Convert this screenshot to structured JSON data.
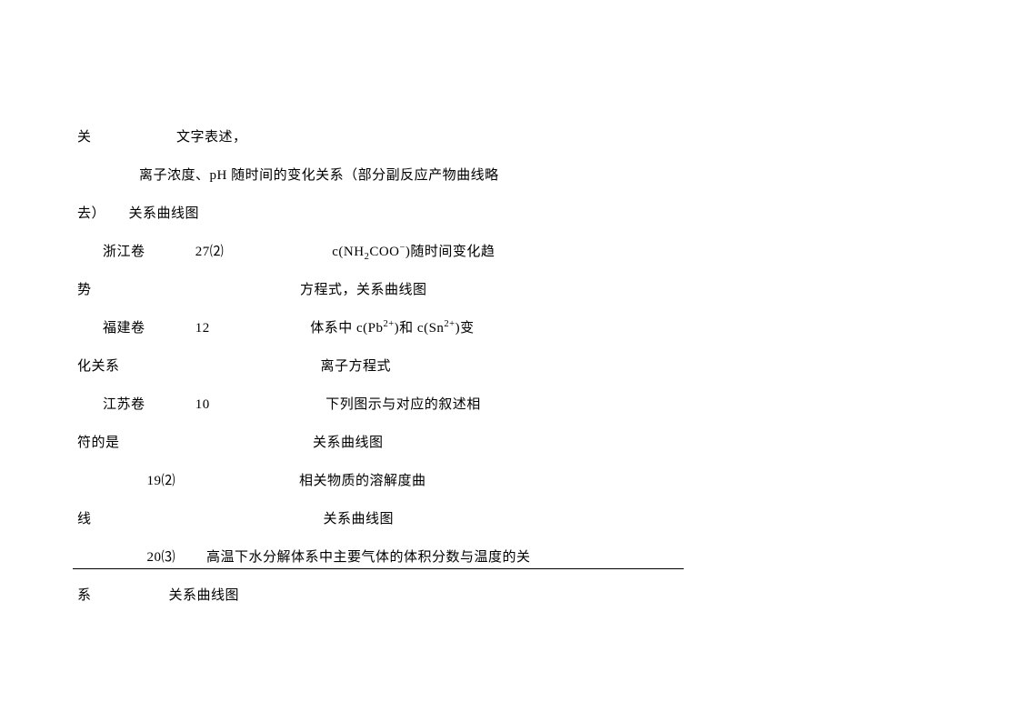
{
  "lines": [
    {
      "cls": "indent1",
      "html": "关&nbsp;&nbsp;&nbsp;&nbsp;&nbsp;&nbsp;&nbsp;&nbsp;&nbsp;&nbsp;&nbsp;&nbsp;&nbsp;&nbsp;&nbsp;&nbsp;&nbsp;&nbsp;&nbsp;&nbsp;&nbsp;&nbsp;文字表述，"
    },
    {
      "cls": "indent1",
      "html": "&nbsp;&nbsp;&nbsp;&nbsp;&nbsp;&nbsp;&nbsp;&nbsp;&nbsp;&nbsp;&nbsp;&nbsp;&nbsp;&nbsp;&nbsp;&nbsp;离子浓度、pH 随时间的变化关系（部分副反应产物曲线略"
    },
    {
      "cls": "indent1",
      "html": "去）&nbsp;&nbsp;&nbsp;&nbsp;&nbsp;&nbsp;关系曲线图"
    },
    {
      "cls": "indent2",
      "html": "浙江卷&nbsp;&nbsp;&nbsp;&nbsp;&nbsp;&nbsp;&nbsp;&nbsp;&nbsp;&nbsp;&nbsp;&nbsp;&nbsp;27⑵&nbsp;&nbsp;&nbsp;&nbsp;&nbsp;&nbsp;&nbsp;&nbsp;&nbsp;&nbsp;&nbsp;&nbsp;&nbsp;&nbsp;&nbsp;&nbsp;&nbsp;&nbsp;&nbsp;&nbsp;&nbsp;&nbsp;&nbsp;&nbsp;&nbsp;&nbsp;&nbsp;&nbsp;c(NH<sub>2</sub>COO<sup>−</sup>)随时间变化趋"
    },
    {
      "cls": "indent1",
      "html": "势&nbsp;&nbsp;&nbsp;&nbsp;&nbsp;&nbsp;&nbsp;&nbsp;&nbsp;&nbsp;&nbsp;&nbsp;&nbsp;&nbsp;&nbsp;&nbsp;&nbsp;&nbsp;&nbsp;&nbsp;&nbsp;&nbsp;&nbsp;&nbsp;&nbsp;&nbsp;&nbsp;&nbsp;&nbsp;&nbsp;&nbsp;&nbsp;&nbsp;&nbsp;&nbsp;&nbsp;&nbsp;&nbsp;&nbsp;&nbsp;&nbsp;&nbsp;&nbsp;&nbsp;&nbsp;&nbsp;&nbsp;&nbsp;&nbsp;&nbsp;&nbsp;&nbsp;&nbsp;&nbsp;方程式，关系曲线图"
    },
    {
      "cls": "indent2",
      "html": "福建卷&nbsp;&nbsp;&nbsp;&nbsp;&nbsp;&nbsp;&nbsp;&nbsp;&nbsp;&nbsp;&nbsp;&nbsp;&nbsp;12&nbsp;&nbsp;&nbsp;&nbsp;&nbsp;&nbsp;&nbsp;&nbsp;&nbsp;&nbsp;&nbsp;&nbsp;&nbsp;&nbsp;&nbsp;&nbsp;&nbsp;&nbsp;&nbsp;&nbsp;&nbsp;&nbsp;&nbsp;&nbsp;&nbsp;&nbsp;体系中 c(Pb<sup>2+</sup>)和 c(Sn<sup>2+</sup>)变"
    },
    {
      "cls": "indent1",
      "html": "化关系&nbsp;&nbsp;&nbsp;&nbsp;&nbsp;&nbsp;&nbsp;&nbsp;&nbsp;&nbsp;&nbsp;&nbsp;&nbsp;&nbsp;&nbsp;&nbsp;&nbsp;&nbsp;&nbsp;&nbsp;&nbsp;&nbsp;&nbsp;&nbsp;&nbsp;&nbsp;&nbsp;&nbsp;&nbsp;&nbsp;&nbsp;&nbsp;&nbsp;&nbsp;&nbsp;&nbsp;&nbsp;&nbsp;&nbsp;&nbsp;&nbsp;&nbsp;&nbsp;&nbsp;&nbsp;&nbsp;&nbsp;&nbsp;&nbsp;&nbsp;&nbsp;&nbsp;离子方程式"
    },
    {
      "cls": "indent2",
      "html": "江苏卷&nbsp;&nbsp;&nbsp;&nbsp;&nbsp;&nbsp;&nbsp;&nbsp;&nbsp;&nbsp;&nbsp;&nbsp;&nbsp;10&nbsp;&nbsp;&nbsp;&nbsp;&nbsp;&nbsp;&nbsp;&nbsp;&nbsp;&nbsp;&nbsp;&nbsp;&nbsp;&nbsp;&nbsp;&nbsp;&nbsp;&nbsp;&nbsp;&nbsp;&nbsp;&nbsp;&nbsp;&nbsp;&nbsp;&nbsp;&nbsp;&nbsp;&nbsp;&nbsp;下列图示与对应的叙述相"
    },
    {
      "cls": "indent1",
      "html": "符的是&nbsp;&nbsp;&nbsp;&nbsp;&nbsp;&nbsp;&nbsp;&nbsp;&nbsp;&nbsp;&nbsp;&nbsp;&nbsp;&nbsp;&nbsp;&nbsp;&nbsp;&nbsp;&nbsp;&nbsp;&nbsp;&nbsp;&nbsp;&nbsp;&nbsp;&nbsp;&nbsp;&nbsp;&nbsp;&nbsp;&nbsp;&nbsp;&nbsp;&nbsp;&nbsp;&nbsp;&nbsp;&nbsp;&nbsp;&nbsp;&nbsp;&nbsp;&nbsp;&nbsp;&nbsp;&nbsp;&nbsp;&nbsp;&nbsp;&nbsp;关系曲线图"
    },
    {
      "cls": "indent1",
      "html": "&nbsp;&nbsp;&nbsp;&nbsp;&nbsp;&nbsp;&nbsp;&nbsp;&nbsp;&nbsp;&nbsp;&nbsp;&nbsp;&nbsp;&nbsp;&nbsp;&nbsp;&nbsp;19⑵&nbsp;&nbsp;&nbsp;&nbsp;&nbsp;&nbsp;&nbsp;&nbsp;&nbsp;&nbsp;&nbsp;&nbsp;&nbsp;&nbsp;&nbsp;&nbsp;&nbsp;&nbsp;&nbsp;&nbsp;&nbsp;&nbsp;&nbsp;&nbsp;&nbsp;&nbsp;&nbsp;&nbsp;&nbsp;&nbsp;&nbsp;&nbsp;相关物质的溶解度曲"
    },
    {
      "cls": "indent1",
      "html": "线&nbsp;&nbsp;&nbsp;&nbsp;&nbsp;&nbsp;&nbsp;&nbsp;&nbsp;&nbsp;&nbsp;&nbsp;&nbsp;&nbsp;&nbsp;&nbsp;&nbsp;&nbsp;&nbsp;&nbsp;&nbsp;&nbsp;&nbsp;&nbsp;&nbsp;&nbsp;&nbsp;&nbsp;&nbsp;&nbsp;&nbsp;&nbsp;&nbsp;&nbsp;&nbsp;&nbsp;&nbsp;&nbsp;&nbsp;&nbsp;&nbsp;&nbsp;&nbsp;&nbsp;&nbsp;&nbsp;&nbsp;&nbsp;&nbsp;&nbsp;&nbsp;&nbsp;&nbsp;&nbsp;&nbsp;&nbsp;&nbsp;&nbsp;&nbsp;&nbsp;关系曲线图"
    },
    {
      "cls": "indent1",
      "html": "&nbsp;&nbsp;&nbsp;&nbsp;&nbsp;&nbsp;&nbsp;&nbsp;&nbsp;&nbsp;&nbsp;&nbsp;&nbsp;&nbsp;&nbsp;&nbsp;&nbsp;&nbsp;20⑶&nbsp;&nbsp;&nbsp;&nbsp;&nbsp;&nbsp;&nbsp;&nbsp;高温下水分解体系中主要气体的体积分数与温度的关"
    },
    {
      "cls": "indent1",
      "html": "系&nbsp;&nbsp;&nbsp;&nbsp;&nbsp;&nbsp;&nbsp;&nbsp;&nbsp;&nbsp;&nbsp;&nbsp;&nbsp;&nbsp;&nbsp;&nbsp;&nbsp;&nbsp;&nbsp;&nbsp;关系曲线图"
    }
  ]
}
